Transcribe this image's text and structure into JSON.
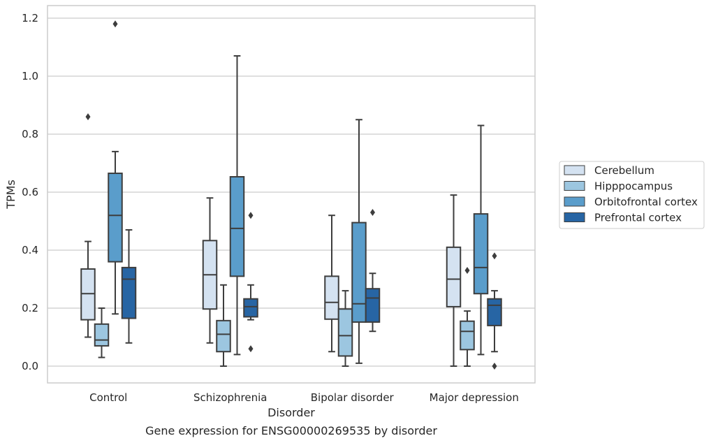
{
  "chart_data": {
    "type": "box",
    "title": "",
    "caption": "Gene expression for ENSG00000269535 by disorder",
    "xlabel": "Disorder",
    "ylabel": "TPMs",
    "ylim": [
      -0.055,
      1.245
    ],
    "yticks": [
      0.0,
      0.2,
      0.4,
      0.6,
      0.8,
      1.0,
      1.2
    ],
    "ytick_labels": [
      "0.0",
      "0.2",
      "0.4",
      "0.6",
      "0.8",
      "1.0",
      "1.2"
    ],
    "grid": "horizontal",
    "legend_position": "right",
    "categories": [
      "Control",
      "Schizophrenia",
      "Bipolar disorder",
      "Major depression"
    ],
    "series": [
      {
        "name": "Cerebellum",
        "color": "#d4e2f1",
        "boxes": [
          {
            "q1": 0.16,
            "median": 0.25,
            "q3": 0.335,
            "whisker_low": 0.1,
            "whisker_high": 0.43,
            "outliers": [
              0.86
            ]
          },
          {
            "q1": 0.197,
            "median": 0.315,
            "q3": 0.433,
            "whisker_low": 0.08,
            "whisker_high": 0.58,
            "outliers": []
          },
          {
            "q1": 0.162,
            "median": 0.22,
            "q3": 0.31,
            "whisker_low": 0.05,
            "whisker_high": 0.52,
            "outliers": []
          },
          {
            "q1": 0.205,
            "median": 0.3,
            "q3": 0.41,
            "whisker_low": 0.0,
            "whisker_high": 0.59,
            "outliers": []
          }
        ]
      },
      {
        "name": "Hipppocampus",
        "color": "#9cc6e0",
        "boxes": [
          {
            "q1": 0.07,
            "median": 0.09,
            "q3": 0.145,
            "whisker_low": 0.03,
            "whisker_high": 0.2,
            "outliers": []
          },
          {
            "q1": 0.05,
            "median": 0.11,
            "q3": 0.157,
            "whisker_low": 0.0,
            "whisker_high": 0.28,
            "outliers": []
          },
          {
            "q1": 0.035,
            "median": 0.105,
            "q3": 0.197,
            "whisker_low": 0.0,
            "whisker_high": 0.26,
            "outliers": []
          },
          {
            "q1": 0.057,
            "median": 0.12,
            "q3": 0.155,
            "whisker_low": 0.0,
            "whisker_high": 0.19,
            "outliers": [
              0.33
            ]
          }
        ]
      },
      {
        "name": "Orbitofrontal cortex",
        "color": "#5a9dcb",
        "boxes": [
          {
            "q1": 0.36,
            "median": 0.52,
            "q3": 0.665,
            "whisker_low": 0.18,
            "whisker_high": 0.74,
            "outliers": [
              1.18
            ]
          },
          {
            "q1": 0.31,
            "median": 0.475,
            "q3": 0.653,
            "whisker_low": 0.04,
            "whisker_high": 1.07,
            "outliers": []
          },
          {
            "q1": 0.152,
            "median": 0.215,
            "q3": 0.495,
            "whisker_low": 0.01,
            "whisker_high": 0.85,
            "outliers": []
          },
          {
            "q1": 0.25,
            "median": 0.34,
            "q3": 0.525,
            "whisker_low": 0.04,
            "whisker_high": 0.83,
            "outliers": []
          }
        ]
      },
      {
        "name": "Prefrontal cortex",
        "color": "#2765a4",
        "boxes": [
          {
            "q1": 0.165,
            "median": 0.3,
            "q3": 0.34,
            "whisker_low": 0.08,
            "whisker_high": 0.47,
            "outliers": []
          },
          {
            "q1": 0.17,
            "median": 0.205,
            "q3": 0.232,
            "whisker_low": 0.16,
            "whisker_high": 0.28,
            "outliers": [
              0.52,
              0.06
            ]
          },
          {
            "q1": 0.152,
            "median": 0.235,
            "q3": 0.267,
            "whisker_low": 0.12,
            "whisker_high": 0.32,
            "outliers": [
              0.53
            ]
          },
          {
            "q1": 0.14,
            "median": 0.21,
            "q3": 0.232,
            "whisker_low": 0.05,
            "whisker_high": 0.26,
            "outliers": [
              0.38,
              0.0
            ]
          }
        ]
      }
    ]
  }
}
